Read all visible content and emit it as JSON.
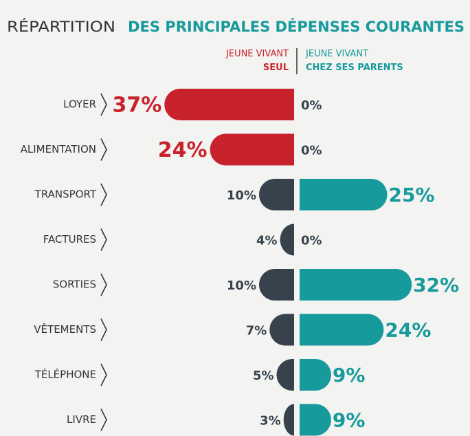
{
  "chart_data": {
    "type": "bar",
    "title": [
      "RÉPARTITION",
      "DES PRINCIPALES DÉPENSES COURANTES"
    ],
    "categories": [
      "LOYER",
      "ALIMENTATION",
      "TRANSPORT",
      "FACTURES",
      "SORTIES",
      "VÊTEMENTS",
      "TÉLÉPHONE",
      "LIVRE"
    ],
    "series": [
      {
        "name": "JEUNE VIVANT SEUL",
        "color": "#c8232c",
        "colors": [
          "#c8232c",
          "#c8232c",
          "#37424c",
          "#37424c",
          "#37424c",
          "#37424c",
          "#37424c",
          "#37424c"
        ],
        "values": [
          37,
          24,
          10,
          4,
          10,
          7,
          5,
          3
        ],
        "value_labels": [
          "37%",
          "24%",
          "10%",
          "4%",
          "10%",
          "7%",
          "5%",
          "3%"
        ]
      },
      {
        "name": "JEUNE VIVANT CHEZ SES PARENTS",
        "color": "#179a9c",
        "values": [
          0,
          0,
          25,
          0,
          32,
          24,
          9,
          9
        ],
        "value_labels": [
          "0%",
          "0%",
          "25%",
          "0%",
          "32%",
          "24%",
          "9%",
          "9%"
        ]
      }
    ]
  }
}
